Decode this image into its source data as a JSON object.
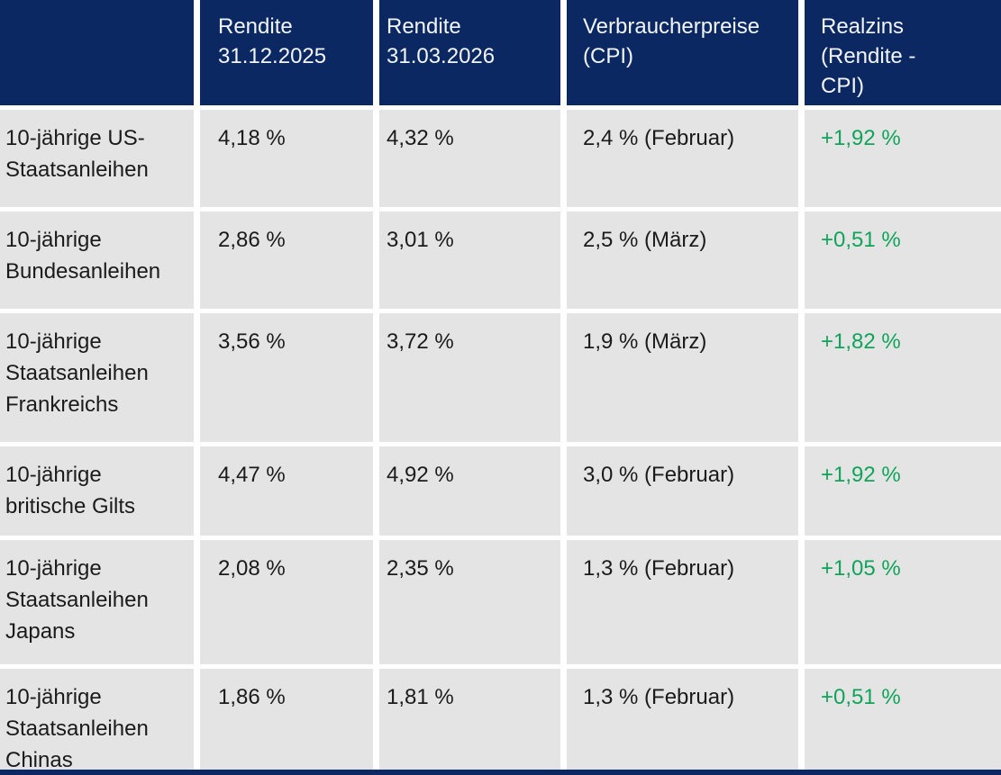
{
  "colors": {
    "header_bg": "#0B2862",
    "cell_bg": "#E4E4E4",
    "header_text": "#F2F5F9",
    "body_text": "#1B1B1B",
    "positive_green": "#0FA45A"
  },
  "table": {
    "headers": {
      "bond": "",
      "rendite_2025": "Rendite\n31.12.2025",
      "rendite_2026": "Rendite\n31.03.2026",
      "cpi": "Verbraucherpreise\n(CPI)",
      "realzins": "Realzins\n(Rendite -\nCPI)"
    },
    "rows": [
      {
        "label": "10-jährige US-\nStaatsanleihen",
        "rendite_2025": "4,18 %",
        "rendite_2026": "4,32 %",
        "cpi": "2,4 % (Februar)",
        "realzins": "+1,92 %"
      },
      {
        "label": "10-jährige\nBundesanleihen",
        "rendite_2025": "2,86 %",
        "rendite_2026": "3,01 %",
        "cpi": "2,5 % (März)",
        "realzins": "+0,51 %"
      },
      {
        "label": "10-jährige\nStaatsanleihen\nFrankreichs",
        "rendite_2025": "3,56 %",
        "rendite_2026": "3,72 %",
        "cpi": "1,9 % (März)",
        "realzins": "+1,82 %"
      },
      {
        "label": "10-jährige\nbritische Gilts",
        "rendite_2025": "4,47 %",
        "rendite_2026": "4,92 %",
        "cpi": "3,0 % (Februar)",
        "realzins": "+1,92 %"
      },
      {
        "label": "10-jährige\nStaatsanleihen\nJapans",
        "rendite_2025": "2,08 %",
        "rendite_2026": "2,35 %",
        "cpi": "1,3 % (Februar)",
        "realzins": "+1,05 %"
      },
      {
        "label": "10-jährige\nStaatsanleihen\nChinas",
        "rendite_2025": "1,86 %",
        "rendite_2026": "1,81 %",
        "cpi": "1,3 % (Februar)",
        "realzins": "+0,51 %"
      }
    ]
  }
}
